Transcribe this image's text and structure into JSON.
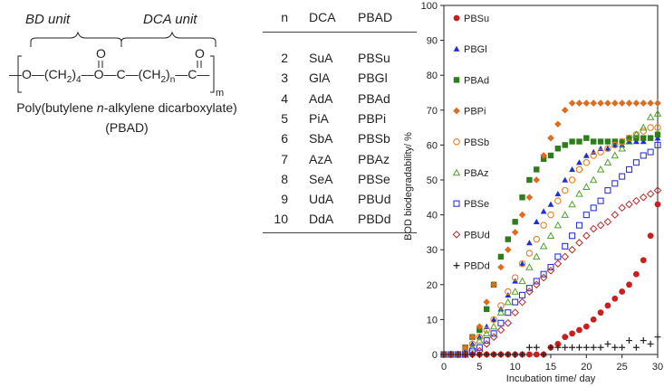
{
  "structure": {
    "bd_unit_label": "BD unit",
    "dca_unit_label": "DCA unit",
    "formula": {
      "bond": "—",
      "o1": "O",
      "dash1": "—",
      "ch2a": "(CH",
      "sub2a": "2",
      "close_a": ")",
      "sub4": "4",
      "dash2": "—",
      "o2": "O",
      "dash3": "—",
      "c1": "C",
      "dash4": "—",
      "ch2b": "(CH",
      "sub2b": "2",
      "close_b": ")",
      "subn": "n",
      "dash5": "—",
      "c2": "C",
      "bond_end": "—",
      "carbonyl_o1": "O",
      "carbonyl_o2": "O",
      "sub_m": "m"
    },
    "caption_line1_prefix": "Poly(butylene ",
    "caption_line1_italic": "n",
    "caption_line1_suffix": "-alkylene dicarboxylate)",
    "caption_line2": "(PBAD)"
  },
  "table": {
    "headers": [
      "n",
      "DCA",
      "PBAD"
    ],
    "rows": [
      {
        "n": "2",
        "dca": "SuA",
        "pbad": "PBSu"
      },
      {
        "n": "3",
        "dca": "GlA",
        "pbad": "PBGl"
      },
      {
        "n": "4",
        "dca": "AdA",
        "pbad": "PBAd"
      },
      {
        "n": "5",
        "dca": "PiA",
        "pbad": "PBPi"
      },
      {
        "n": "6",
        "dca": "SbA",
        "pbad": "PBSb"
      },
      {
        "n": "7",
        "dca": "AzA",
        "pbad": "PBAz"
      },
      {
        "n": "8",
        "dca": "SeA",
        "pbad": "PBSe"
      },
      {
        "n": "9",
        "dca": "UdA",
        "pbad": "PBUd"
      },
      {
        "n": "10",
        "dca": "DdA",
        "pbad": "PBDd"
      }
    ]
  },
  "chart_data": {
    "type": "scatter",
    "title": "",
    "xlabel": "Incubation time/ day",
    "ylabel": "BOD biodegradability/ %",
    "xlim": [
      0,
      30
    ],
    "ylim": [
      0,
      100
    ],
    "xticks": [
      0,
      5,
      10,
      15,
      20,
      25,
      30
    ],
    "yticks": [
      0,
      10,
      20,
      30,
      40,
      50,
      60,
      70,
      80,
      90,
      100
    ],
    "legend_position": "left, inside plot",
    "series": [
      {
        "name": "PBSu",
        "color": "#cc1e1e",
        "marker": "filled-circle",
        "x": [
          0,
          1,
          2,
          3,
          4,
          5,
          6,
          7,
          8,
          9,
          10,
          11,
          12,
          13,
          14,
          15,
          16,
          17,
          18,
          19,
          20,
          21,
          22,
          23,
          24,
          25,
          26,
          27,
          28,
          29,
          30
        ],
        "y": [
          0,
          0,
          0,
          0,
          0,
          0,
          0,
          0,
          0,
          0,
          0,
          0,
          0,
          0,
          0,
          2,
          3,
          5,
          6,
          7,
          8,
          10,
          12,
          14,
          16,
          18,
          20,
          23,
          27,
          34,
          43
        ]
      },
      {
        "name": "PBGl",
        "color": "#1f2fd6",
        "marker": "filled-triangle",
        "x": [
          0,
          1,
          2,
          3,
          4,
          5,
          6,
          7,
          8,
          9,
          10,
          11,
          12,
          13,
          14,
          15,
          16,
          17,
          18,
          19,
          20,
          21,
          22,
          23,
          24,
          25,
          26,
          27,
          28,
          29,
          30
        ],
        "y": [
          0,
          0,
          0,
          1,
          3,
          5,
          8,
          10,
          13,
          17,
          21,
          26,
          32,
          38,
          41,
          43,
          46,
          50,
          53,
          55,
          57,
          58,
          59,
          59,
          60,
          60,
          61,
          61,
          61,
          62,
          62
        ]
      },
      {
        "name": "PBAd",
        "color": "#2d7d1d",
        "marker": "filled-square",
        "x": [
          0,
          1,
          2,
          3,
          4,
          5,
          6,
          7,
          8,
          9,
          10,
          11,
          12,
          13,
          14,
          15,
          16,
          17,
          18,
          19,
          20,
          21,
          22,
          23,
          24,
          25,
          26,
          27,
          28,
          29,
          30
        ],
        "y": [
          0,
          0,
          0,
          2,
          5,
          7,
          13,
          20,
          28,
          33,
          38,
          45,
          50,
          53,
          56,
          57,
          59,
          60,
          61,
          61,
          62,
          61,
          61,
          61,
          61,
          61,
          62,
          62,
          62,
          62,
          63
        ]
      },
      {
        "name": "PBPi",
        "color": "#e06b1c",
        "marker": "filled-diamond",
        "x": [
          0,
          1,
          2,
          3,
          4,
          5,
          6,
          7,
          8,
          9,
          10,
          11,
          12,
          13,
          14,
          15,
          16,
          17,
          18,
          19,
          20,
          21,
          22,
          23,
          24,
          25,
          26,
          27,
          28,
          29,
          30
        ],
        "y": [
          0,
          0,
          0,
          2,
          5,
          8,
          15,
          20,
          25,
          30,
          35,
          40,
          45,
          50,
          57,
          62,
          66,
          70,
          72,
          72,
          72,
          72,
          72,
          72,
          72,
          72,
          72,
          72,
          72,
          72,
          72
        ]
      },
      {
        "name": "PBSb",
        "color": "#e8801e",
        "marker": "open-circle",
        "x": [
          0,
          1,
          2,
          3,
          4,
          5,
          6,
          7,
          8,
          9,
          10,
          11,
          12,
          13,
          14,
          15,
          16,
          17,
          18,
          19,
          20,
          21,
          22,
          23,
          24,
          25,
          26,
          27,
          28,
          29,
          30
        ],
        "y": [
          0,
          0,
          0,
          1,
          3,
          5,
          7,
          10,
          14,
          18,
          22,
          26,
          29,
          33,
          37,
          40,
          44,
          47,
          50,
          53,
          55,
          57,
          58,
          59,
          60,
          61,
          62,
          63,
          64,
          65,
          65
        ]
      },
      {
        "name": "PBAz",
        "color": "#4ea22c",
        "marker": "open-triangle",
        "x": [
          0,
          1,
          2,
          3,
          4,
          5,
          6,
          7,
          8,
          9,
          10,
          11,
          12,
          13,
          14,
          15,
          16,
          17,
          18,
          19,
          20,
          21,
          22,
          23,
          24,
          25,
          26,
          27,
          28,
          29,
          30
        ],
        "y": [
          0,
          0,
          0,
          0,
          2,
          4,
          6,
          8,
          12,
          15,
          18,
          21,
          25,
          28,
          31,
          34,
          37,
          40,
          43,
          46,
          48,
          50,
          53,
          55,
          57,
          59,
          61,
          63,
          65,
          68,
          69
        ]
      },
      {
        "name": "PBSe",
        "color": "#2e36d8",
        "marker": "open-square",
        "x": [
          0,
          1,
          2,
          3,
          4,
          5,
          6,
          7,
          8,
          9,
          10,
          11,
          12,
          13,
          14,
          15,
          16,
          17,
          18,
          19,
          20,
          21,
          22,
          23,
          24,
          25,
          26,
          27,
          28,
          29,
          30
        ],
        "y": [
          0,
          0,
          0,
          0,
          1,
          2,
          4,
          6,
          9,
          12,
          15,
          17,
          19,
          21,
          23,
          25,
          28,
          31,
          34,
          37,
          40,
          42,
          44,
          47,
          49,
          51,
          53,
          55,
          57,
          58,
          60
        ]
      },
      {
        "name": "PBUd",
        "color": "#b82a2a",
        "marker": "open-diamond",
        "x": [
          0,
          1,
          2,
          3,
          4,
          5,
          6,
          7,
          8,
          9,
          10,
          11,
          12,
          13,
          14,
          15,
          16,
          17,
          18,
          19,
          20,
          21,
          22,
          23,
          24,
          25,
          26,
          27,
          28,
          29,
          30
        ],
        "y": [
          0,
          0,
          0,
          0,
          0,
          1,
          3,
          5,
          7,
          9,
          12,
          15,
          18,
          20,
          22,
          24,
          26,
          28,
          30,
          32,
          34,
          36,
          37,
          38,
          40,
          42,
          43,
          44,
          45,
          46,
          47
        ]
      },
      {
        "name": "PBDd",
        "color": "#222222",
        "marker": "plus",
        "x": [
          0,
          1,
          2,
          3,
          4,
          5,
          6,
          7,
          8,
          9,
          10,
          11,
          12,
          13,
          14,
          15,
          16,
          17,
          18,
          19,
          20,
          21,
          22,
          23,
          24,
          25,
          26,
          27,
          28,
          29,
          30
        ],
        "y": [
          0,
          0,
          0,
          0,
          0,
          0,
          0,
          0,
          0,
          0,
          0,
          0,
          2,
          2,
          0,
          2,
          2,
          2,
          2,
          2,
          2,
          2,
          2,
          3,
          2,
          2,
          4,
          2,
          4,
          3,
          5
        ]
      }
    ]
  }
}
